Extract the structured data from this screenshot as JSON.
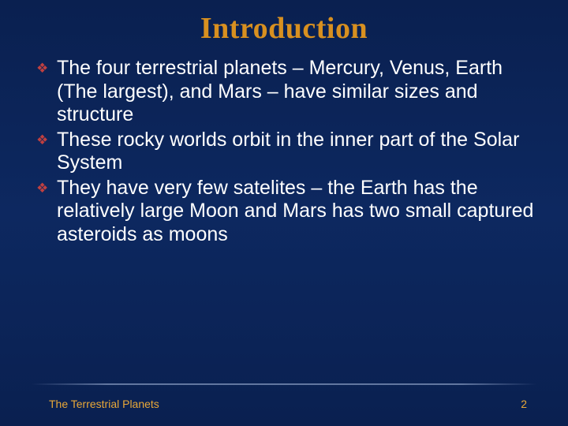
{
  "slide": {
    "title": "Introduction",
    "title_color": "#d89020",
    "title_fontsize": 38,
    "title_font": "Georgia, serif",
    "background_gradient": [
      "#0a2050",
      "#0d2860",
      "#0a2050"
    ],
    "bullet_glyph": "❖",
    "bullet_color": "#c04040",
    "body_text_color": "#ffffff",
    "body_fontsize": 25,
    "bullets": [
      {
        "text": "The four terrestrial planets – Mercury, Venus, Earth (The largest), and Mars – have similar sizes and structure"
      },
      {
        "text": "These rocky worlds orbit in the inner part of the Solar System"
      },
      {
        "text": "They have very few satelites – the Earth has the relatively large Moon and Mars has two small captured asteroids as moons"
      }
    ],
    "footer": {
      "left_text": "The Terrestrial Planets",
      "page_number": "2",
      "text_color": "#e8a838",
      "divider_color": "rgba(120,140,180,0.8)",
      "fontsize": 14
    }
  }
}
